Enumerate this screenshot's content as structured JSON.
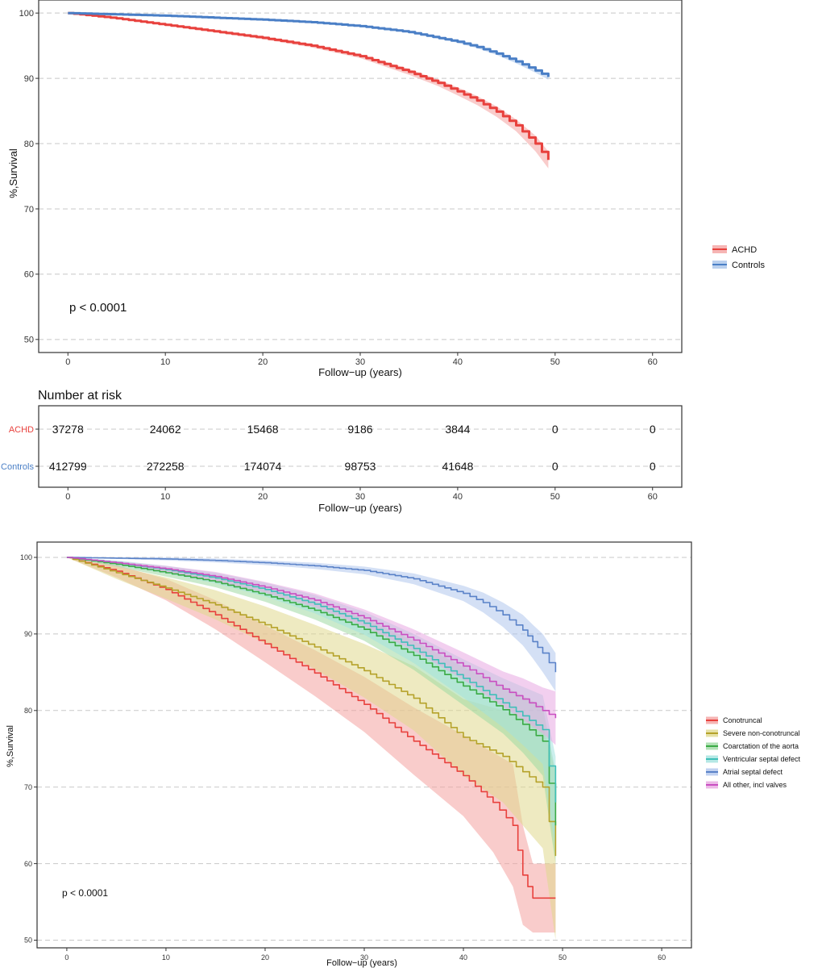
{
  "chart_data": [
    {
      "type": "line",
      "panel": "A",
      "title": "",
      "xlabel": "Follow−up (years)",
      "ylabel": "%,Survival",
      "xlim": [
        -3,
        63
      ],
      "ylim": [
        48,
        102
      ],
      "xticks": [
        0,
        10,
        20,
        30,
        40,
        50,
        60
      ],
      "yticks": [
        50,
        60,
        70,
        80,
        90,
        100
      ],
      "grid": "horizontal dashed",
      "legend_position": "right",
      "annotation": "p < 0.0001",
      "series": [
        {
          "name": "ACHD",
          "color": "#e8413d",
          "band_color": "#f4a3a1",
          "x": [
            0,
            5,
            10,
            15,
            20,
            25,
            30,
            35,
            38,
            40,
            42,
            44,
            46,
            48,
            49.3
          ],
          "y": [
            100,
            99.2,
            98.2,
            97.2,
            96.2,
            95.0,
            93.4,
            91.0,
            89.3,
            88.0,
            86.6,
            84.9,
            82.8,
            80.0,
            77.5
          ],
          "lower": [
            100,
            99.15,
            98.1,
            97.05,
            96.0,
            94.75,
            93.1,
            90.55,
            88.8,
            87.4,
            85.9,
            84.1,
            81.9,
            78.8,
            76.2
          ],
          "upper": [
            100,
            99.25,
            98.3,
            97.35,
            96.4,
            95.25,
            93.7,
            91.45,
            89.8,
            88.6,
            87.3,
            85.7,
            83.7,
            81.2,
            78.8
          ]
        },
        {
          "name": "Controls",
          "color": "#4a7fc6",
          "band_color": "#a9c4ea",
          "x": [
            0,
            5,
            10,
            15,
            20,
            25,
            30,
            35,
            40,
            42,
            44,
            46,
            48,
            49.3
          ],
          "y": [
            100,
            99.8,
            99.6,
            99.3,
            99.0,
            98.6,
            98.0,
            97.1,
            95.6,
            94.8,
            93.8,
            92.6,
            91.2,
            90.2
          ],
          "lower": [
            100,
            99.78,
            99.57,
            99.26,
            98.95,
            98.54,
            97.93,
            97.0,
            95.45,
            94.62,
            93.58,
            92.3,
            90.85,
            89.8
          ],
          "upper": [
            100,
            99.82,
            99.63,
            99.34,
            99.05,
            98.66,
            98.07,
            97.2,
            95.75,
            94.98,
            94.02,
            92.9,
            91.55,
            90.6
          ]
        }
      ]
    },
    {
      "type": "table",
      "panel": "risk",
      "title": "Number at risk",
      "xlabel": "Follow−up (years)",
      "xticks": [
        0,
        10,
        20,
        30,
        40,
        50,
        60
      ],
      "rows": [
        {
          "name": "ACHD",
          "color": "#e8413d",
          "values": [
            "37278",
            "24062",
            "15468",
            "9186",
            "3844",
            "0",
            "0"
          ]
        },
        {
          "name": "Controls",
          "color": "#4a7fc6",
          "values": [
            "412799",
            "272258",
            "174074",
            "98753",
            "41648",
            "0",
            "0"
          ]
        }
      ]
    },
    {
      "type": "line",
      "panel": "B",
      "title": "",
      "xlabel": "Follow−up (years)",
      "ylabel": "%,Survival",
      "xlim": [
        -3,
        63
      ],
      "ylim": [
        49,
        102
      ],
      "xticks": [
        0,
        10,
        20,
        30,
        40,
        50,
        60
      ],
      "yticks": [
        50,
        60,
        70,
        80,
        90,
        100
      ],
      "grid": "horizontal dashed",
      "legend_position": "right",
      "annotation": "p < 0.0001",
      "series": [
        {
          "name": "Conotruncal",
          "color": "#e8413d",
          "band_color": "#f4a3a1",
          "x": [
            0,
            5,
            10,
            15,
            20,
            25,
            30,
            35,
            40,
            43,
            45,
            46,
            47,
            48,
            49.3
          ],
          "y": [
            100,
            98.2,
            95.8,
            92.5,
            88.7,
            84.9,
            80.8,
            76.0,
            71.5,
            68.0,
            65.0,
            58.5,
            55.5,
            55.5,
            55.5
          ],
          "lower": [
            100,
            97.4,
            94.4,
            90.6,
            86.3,
            81.9,
            77.2,
            71.6,
            66.2,
            61.5,
            57.0,
            52.0,
            51.0,
            51.0,
            51.0
          ],
          "upper": [
            100,
            99.0,
            97.2,
            94.4,
            91.1,
            87.9,
            84.4,
            80.4,
            76.8,
            74.5,
            73.0,
            65.0,
            60.0,
            60.0,
            60.0
          ]
        },
        {
          "name": "Severe non-conotruncal",
          "color": "#b5a22a",
          "band_color": "#e0d98e",
          "x": [
            0,
            5,
            10,
            15,
            20,
            25,
            30,
            35,
            40,
            44,
            46,
            48,
            49.3
          ],
          "y": [
            100,
            98.0,
            96.0,
            93.8,
            91.2,
            88.3,
            85.2,
            81.6,
            76.5,
            74.0,
            72.0,
            70.0,
            61.0
          ],
          "lower": [
            100,
            97.2,
            94.6,
            91.9,
            88.8,
            85.4,
            81.7,
            77.4,
            71.5,
            68.0,
            65.0,
            62.0,
            50.0
          ],
          "upper": [
            100,
            98.8,
            97.4,
            95.7,
            93.6,
            91.2,
            88.7,
            85.8,
            81.5,
            80.0,
            79.0,
            78.0,
            72.0
          ]
        },
        {
          "name": "Coarctation of the aorta",
          "color": "#3aaa45",
          "band_color": "#9ed9a3",
          "x": [
            0,
            5,
            10,
            15,
            20,
            25,
            30,
            35,
            40,
            44,
            46,
            48,
            49.3
          ],
          "y": [
            100,
            99.1,
            98.0,
            96.8,
            95.1,
            93.1,
            90.6,
            87.2,
            83.2,
            80.1,
            78.2,
            76.0,
            65.0
          ],
          "lower": [
            100,
            98.8,
            97.5,
            96.1,
            94.2,
            91.9,
            89.1,
            85.3,
            80.7,
            77.0,
            74.5,
            71.5,
            60.0
          ],
          "upper": [
            100,
            99.4,
            98.5,
            97.5,
            96.0,
            94.3,
            92.1,
            89.1,
            85.7,
            83.2,
            81.9,
            80.5,
            72.0
          ]
        },
        {
          "name": "Ventricular septal defect",
          "color": "#3fbfb9",
          "band_color": "#a3e2de",
          "x": [
            0,
            5,
            10,
            15,
            20,
            25,
            30,
            35,
            40,
            44,
            46,
            48,
            49.3
          ],
          "y": [
            100,
            99.3,
            98.4,
            97.3,
            95.8,
            93.9,
            91.4,
            88.1,
            84.2,
            81.0,
            79.3,
            77.5,
            68.0
          ],
          "lower": [
            100,
            99.0,
            97.9,
            96.6,
            94.9,
            92.7,
            89.9,
            86.2,
            81.7,
            77.8,
            75.5,
            73.0,
            62.0
          ],
          "upper": [
            100,
            99.6,
            98.9,
            98.0,
            96.7,
            95.1,
            92.9,
            90.0,
            86.7,
            84.2,
            83.1,
            82.0,
            74.0
          ]
        },
        {
          "name": "Atrial septal defect",
          "color": "#5a82c8",
          "band_color": "#b0c6ec",
          "x": [
            0,
            5,
            10,
            15,
            20,
            25,
            30,
            35,
            40,
            42,
            44,
            46,
            47,
            48,
            49.3
          ],
          "y": [
            100,
            99.9,
            99.8,
            99.6,
            99.3,
            98.9,
            98.3,
            97.2,
            95.3,
            94.1,
            92.5,
            90.5,
            89.0,
            87.5,
            85.0
          ],
          "lower": [
            100,
            99.8,
            99.6,
            99.35,
            99.0,
            98.5,
            97.8,
            96.5,
            94.3,
            92.8,
            90.9,
            88.5,
            86.8,
            85.0,
            82.5
          ],
          "upper": [
            100,
            100,
            100,
            99.85,
            99.6,
            99.3,
            98.8,
            97.9,
            96.3,
            95.4,
            94.1,
            92.5,
            91.2,
            90.0,
            87.5
          ]
        },
        {
          "name": "All other, incl valves",
          "color": "#c94fc1",
          "band_color": "#e7a8e1",
          "x": [
            0,
            5,
            10,
            15,
            20,
            25,
            30,
            35,
            40,
            44,
            46,
            48,
            49.3
          ],
          "y": [
            100,
            99.3,
            98.5,
            97.5,
            96.1,
            94.4,
            92.1,
            89.2,
            85.8,
            82.8,
            81.5,
            80.0,
            79.0
          ],
          "lower": [
            100,
            99.1,
            98.1,
            96.9,
            95.4,
            93.5,
            91.0,
            87.8,
            84.0,
            80.5,
            78.8,
            77.0,
            75.5
          ],
          "upper": [
            100,
            99.5,
            98.9,
            98.1,
            96.8,
            95.3,
            93.2,
            90.6,
            87.6,
            85.1,
            84.2,
            83.0,
            82.5
          ]
        }
      ]
    }
  ]
}
